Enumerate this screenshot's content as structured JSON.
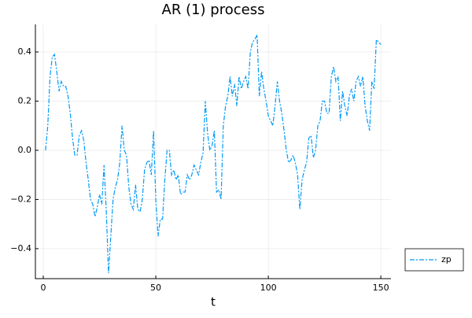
{
  "chart_data": {
    "type": "line",
    "title": "AR (1) process",
    "xlabel": "t",
    "x": [
      1,
      2,
      3,
      4,
      5,
      6,
      7,
      8,
      9,
      10,
      11,
      12,
      13,
      14,
      15,
      16,
      17,
      18,
      19,
      20,
      21,
      22,
      23,
      24,
      25,
      26,
      27,
      28,
      29,
      30,
      31,
      32,
      33,
      34,
      35,
      36,
      37,
      38,
      39,
      40,
      41,
      42,
      43,
      44,
      45,
      46,
      47,
      48,
      49,
      50,
      51,
      52,
      53,
      54,
      55,
      56,
      57,
      58,
      59,
      60,
      61,
      62,
      63,
      64,
      65,
      66,
      67,
      68,
      69,
      70,
      71,
      72,
      73,
      74,
      75,
      76,
      77,
      78,
      79,
      80,
      81,
      82,
      83,
      84,
      85,
      86,
      87,
      88,
      89,
      90,
      91,
      92,
      93,
      94,
      95,
      96,
      97,
      98,
      99,
      100,
      101,
      102,
      103,
      104,
      105,
      106,
      107,
      108,
      109,
      110,
      111,
      112,
      113,
      114,
      115,
      116,
      117,
      118,
      119,
      120,
      121,
      122,
      123,
      124,
      125,
      126,
      127,
      128,
      129,
      130,
      131,
      132,
      133,
      134,
      135,
      136,
      137,
      138,
      139,
      140,
      141,
      142,
      143,
      144,
      145,
      146,
      147,
      148,
      149,
      150
    ],
    "series": [
      {
        "name": "zp",
        "color": "#009af9",
        "dash": "6,2,2,2",
        "values": [
          0.0,
          0.1,
          0.3,
          0.38,
          0.39,
          0.32,
          0.24,
          0.28,
          0.26,
          0.26,
          0.22,
          0.15,
          0.05,
          -0.02,
          -0.02,
          0.06,
          0.08,
          0.04,
          -0.05,
          -0.12,
          -0.2,
          -0.22,
          -0.27,
          -0.23,
          -0.18,
          -0.22,
          -0.06,
          -0.25,
          -0.5,
          -0.35,
          -0.2,
          -0.15,
          -0.12,
          -0.05,
          0.1,
          0.0,
          -0.02,
          -0.15,
          -0.22,
          -0.24,
          -0.14,
          -0.24,
          -0.25,
          -0.2,
          -0.08,
          -0.05,
          -0.04,
          -0.1,
          0.08,
          -0.2,
          -0.35,
          -0.28,
          -0.28,
          -0.12,
          0.0,
          0.0,
          -0.1,
          -0.08,
          -0.12,
          -0.1,
          -0.18,
          -0.17,
          -0.17,
          -0.1,
          -0.12,
          -0.1,
          -0.06,
          -0.08,
          -0.1,
          -0.05,
          -0.01,
          0.2,
          0.07,
          0.0,
          0.02,
          0.08,
          -0.17,
          -0.16,
          -0.2,
          0.1,
          0.18,
          0.22,
          0.3,
          0.22,
          0.27,
          0.18,
          0.3,
          0.25,
          0.28,
          0.3,
          0.25,
          0.4,
          0.44,
          0.45,
          0.47,
          0.22,
          0.32,
          0.25,
          0.2,
          0.14,
          0.12,
          0.1,
          0.18,
          0.28,
          0.2,
          0.15,
          0.08,
          0.0,
          -0.05,
          -0.04,
          -0.02,
          -0.05,
          -0.1,
          -0.24,
          -0.12,
          -0.08,
          -0.05,
          0.05,
          0.06,
          -0.03,
          0.0,
          0.1,
          0.12,
          0.2,
          0.2,
          0.15,
          0.15,
          0.3,
          0.34,
          0.28,
          0.3,
          0.12,
          0.24,
          0.18,
          0.14,
          0.22,
          0.25,
          0.2,
          0.28,
          0.3,
          0.26,
          0.3,
          0.18,
          0.12,
          0.08,
          0.28,
          0.25,
          0.45,
          0.44,
          0.43
        ]
      }
    ],
    "xlim": [
      -3.5,
      154.5
    ],
    "xticks": [
      0,
      50,
      100,
      150
    ],
    "ylim": [
      -0.522,
      0.512
    ],
    "yticks": [
      {
        "value": -0.4,
        "label": "−0.4"
      },
      {
        "value": -0.2,
        "label": "−0.2"
      },
      {
        "value": 0,
        "label": "0.0"
      },
      0.2,
      0.4
    ],
    "grid": true,
    "legend": "outerbottomright"
  }
}
